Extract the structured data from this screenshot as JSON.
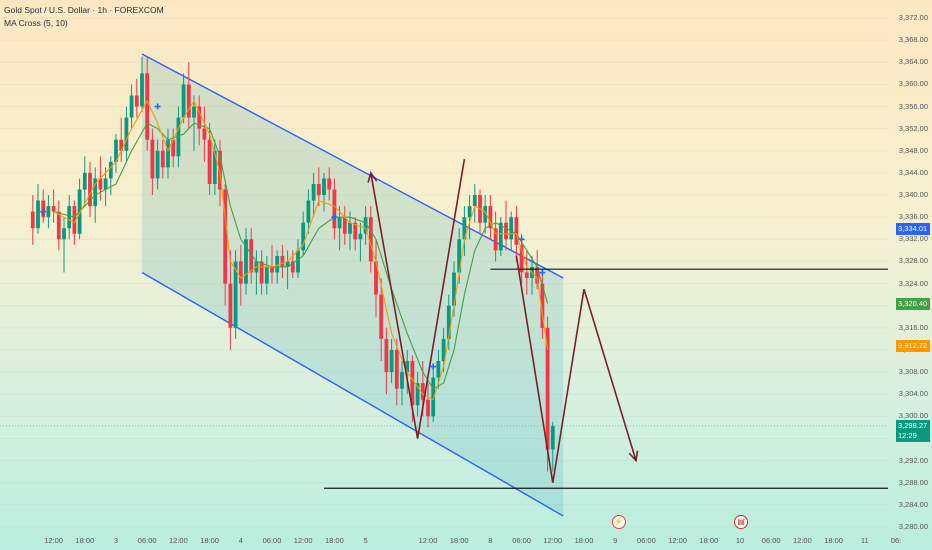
{
  "legend": {
    "symbol": "Gold Spot / U.S. Dollar · 1h · FOREXCOM",
    "indicator": "MA Cross (5, 10)"
  },
  "colors": {
    "bull": "#089981",
    "bear": "#f23645",
    "channel": "#2962ff",
    "arrow": "#7b1f2a",
    "ma_fast": "#ff9800",
    "ma_slow": "#43a047",
    "level": "#131722"
  },
  "price_axis": {
    "min": 3280.0,
    "max": 3372.0,
    "ticks": [
      "3,372.00",
      "3,368.00",
      "3,364.00",
      "3,360.00",
      "3,356.00",
      "3,352.00",
      "3,348.00",
      "3,344.00",
      "3,340.00",
      "3,336.00",
      "3,332.00",
      "3,328.00",
      "3,324.00",
      "3,320.00",
      "3,316.00",
      "3,312.00",
      "3,308.00",
      "3,304.00",
      "3,300.00",
      "3,296.00",
      "3,292.00",
      "3,288.00",
      "3,284.00",
      "3,280.00"
    ]
  },
  "badges": [
    {
      "label": "3,334.01",
      "value": 3334.01,
      "color": "#2962ff",
      "countdown": ""
    },
    {
      "label": "3,320.40",
      "value": 3320.4,
      "color": "#43a047",
      "countdown": ""
    },
    {
      "label": "3,312.72",
      "value": 3312.72,
      "color": "#ff9800",
      "countdown": ""
    },
    {
      "label": "3,298.27",
      "value": 3298.27,
      "color": "#089981",
      "countdown": "12:29"
    }
  ],
  "time_axis": {
    "ticks": [
      {
        "label": "12:00",
        "slot": -12
      },
      {
        "label": "18:00",
        "slot": -6
      },
      {
        "label": "3",
        "slot": 0
      },
      {
        "label": "06:00",
        "slot": 6
      },
      {
        "label": "12:00",
        "slot": 12
      },
      {
        "label": "18:00",
        "slot": 18
      },
      {
        "label": "4",
        "slot": 24
      },
      {
        "label": "06:00",
        "slot": 30
      },
      {
        "label": "12:00",
        "slot": 36
      },
      {
        "label": "18:00",
        "slot": 42
      },
      {
        "label": "5",
        "slot": 48
      },
      {
        "label": "12:00",
        "slot": 60
      },
      {
        "label": "18:00",
        "slot": 66
      },
      {
        "label": "8",
        "slot": 72
      },
      {
        "label": "06:00",
        "slot": 78
      },
      {
        "label": "12:00",
        "slot": 84
      },
      {
        "label": "18:00",
        "slot": 90
      },
      {
        "label": "9",
        "slot": 96
      },
      {
        "label": "06:00",
        "slot": 102
      },
      {
        "label": "12:00",
        "slot": 108
      },
      {
        "label": "18:00",
        "slot": 114
      },
      {
        "label": "10",
        "slot": 120
      },
      {
        "label": "06:00",
        "slot": 126
      },
      {
        "label": "12:00",
        "slot": 132
      },
      {
        "label": "18:00",
        "slot": 138
      },
      {
        "label": "11",
        "slot": 144
      },
      {
        "label": "06:",
        "slot": 150
      }
    ]
  },
  "events": [
    {
      "name": "flash-event-icon",
      "glyph": "⚡",
      "slot": 96.5,
      "color": "#f23645",
      "fill": "#fff"
    },
    {
      "name": "us-flag-event-icon",
      "glyph": "▤",
      "slot": 120,
      "color": "#c62828",
      "fill": "#fff"
    }
  ],
  "chart_data": {
    "type": "candlestick",
    "symbol": "Gold Spot / U.S. Dollar",
    "interval": "1h",
    "ylim": [
      3280,
      3372
    ],
    "candles": [
      {
        "slot": -16,
        "o": 3337,
        "h": 3340,
        "l": 3331,
        "c": 3334
      },
      {
        "slot": -15,
        "o": 3334,
        "h": 3342,
        "l": 3333,
        "c": 3339
      },
      {
        "slot": -14,
        "o": 3339,
        "h": 3341,
        "l": 3335,
        "c": 3336
      },
      {
        "slot": -13,
        "o": 3336,
        "h": 3340,
        "l": 3334,
        "c": 3338
      },
      {
        "slot": -12,
        "o": 3338,
        "h": 3341,
        "l": 3335,
        "c": 3337
      },
      {
        "slot": -11,
        "o": 3337,
        "h": 3339,
        "l": 3330,
        "c": 3332
      },
      {
        "slot": -10,
        "o": 3332,
        "h": 3336,
        "l": 3326,
        "c": 3334
      },
      {
        "slot": -9,
        "o": 3334,
        "h": 3340,
        "l": 3332,
        "c": 3338
      },
      {
        "slot": -8,
        "o": 3338,
        "h": 3339,
        "l": 3331,
        "c": 3333
      },
      {
        "slot": -7,
        "o": 3333,
        "h": 3343,
        "l": 3332,
        "c": 3341
      },
      {
        "slot": -6,
        "o": 3341,
        "h": 3347,
        "l": 3338,
        "c": 3344
      },
      {
        "slot": -5,
        "o": 3344,
        "h": 3346,
        "l": 3336,
        "c": 3338
      },
      {
        "slot": -4,
        "o": 3338,
        "h": 3345,
        "l": 3335,
        "c": 3343
      },
      {
        "slot": -3,
        "o": 3343,
        "h": 3347,
        "l": 3339,
        "c": 3341
      },
      {
        "slot": -2,
        "o": 3341,
        "h": 3345,
        "l": 3338,
        "c": 3343
      },
      {
        "slot": -1,
        "o": 3343,
        "h": 3347,
        "l": 3340,
        "c": 3346
      },
      {
        "slot": 0,
        "o": 3346,
        "h": 3351,
        "l": 3344,
        "c": 3350
      },
      {
        "slot": 1,
        "o": 3350,
        "h": 3354,
        "l": 3346,
        "c": 3348
      },
      {
        "slot": 2,
        "o": 3348,
        "h": 3356,
        "l": 3346,
        "c": 3354
      },
      {
        "slot": 3,
        "o": 3354,
        "h": 3360,
        "l": 3352,
        "c": 3358
      },
      {
        "slot": 4,
        "o": 3358,
        "h": 3361,
        "l": 3354,
        "c": 3356
      },
      {
        "slot": 5,
        "o": 3356,
        "h": 3365,
        "l": 3355,
        "c": 3362
      },
      {
        "slot": 6,
        "o": 3362,
        "h": 3365,
        "l": 3348,
        "c": 3350
      },
      {
        "slot": 7,
        "o": 3350,
        "h": 3352,
        "l": 3340,
        "c": 3343
      },
      {
        "slot": 8,
        "o": 3343,
        "h": 3350,
        "l": 3341,
        "c": 3348
      },
      {
        "slot": 9,
        "o": 3348,
        "h": 3350,
        "l": 3343,
        "c": 3345
      },
      {
        "slot": 10,
        "o": 3345,
        "h": 3352,
        "l": 3343,
        "c": 3350
      },
      {
        "slot": 11,
        "o": 3350,
        "h": 3352,
        "l": 3345,
        "c": 3347
      },
      {
        "slot": 12,
        "o": 3347,
        "h": 3356,
        "l": 3345,
        "c": 3354
      },
      {
        "slot": 13,
        "o": 3354,
        "h": 3362,
        "l": 3353,
        "c": 3360
      },
      {
        "slot": 14,
        "o": 3360,
        "h": 3364,
        "l": 3352,
        "c": 3354
      },
      {
        "slot": 15,
        "o": 3354,
        "h": 3358,
        "l": 3348,
        "c": 3356
      },
      {
        "slot": 16,
        "o": 3356,
        "h": 3358,
        "l": 3349,
        "c": 3352
      },
      {
        "slot": 17,
        "o": 3352,
        "h": 3356,
        "l": 3346,
        "c": 3350
      },
      {
        "slot": 18,
        "o": 3350,
        "h": 3353,
        "l": 3340,
        "c": 3342
      },
      {
        "slot": 19,
        "o": 3342,
        "h": 3350,
        "l": 3340,
        "c": 3348
      },
      {
        "slot": 20,
        "o": 3348,
        "h": 3350,
        "l": 3338,
        "c": 3341
      },
      {
        "slot": 21,
        "o": 3341,
        "h": 3342,
        "l": 3320,
        "c": 3324
      },
      {
        "slot": 22,
        "o": 3324,
        "h": 3330,
        "l": 3312,
        "c": 3316
      },
      {
        "slot": 23,
        "o": 3316,
        "h": 3330,
        "l": 3314,
        "c": 3328
      },
      {
        "slot": 24,
        "o": 3328,
        "h": 3331,
        "l": 3320,
        "c": 3324
      },
      {
        "slot": 25,
        "o": 3324,
        "h": 3334,
        "l": 3322,
        "c": 3332
      },
      {
        "slot": 26,
        "o": 3332,
        "h": 3334,
        "l": 3324,
        "c": 3326
      },
      {
        "slot": 27,
        "o": 3326,
        "h": 3330,
        "l": 3322,
        "c": 3328
      },
      {
        "slot": 28,
        "o": 3328,
        "h": 3330,
        "l": 3322,
        "c": 3324
      },
      {
        "slot": 29,
        "o": 3324,
        "h": 3329,
        "l": 3322,
        "c": 3327
      },
      {
        "slot": 30,
        "o": 3327,
        "h": 3331,
        "l": 3324,
        "c": 3326
      },
      {
        "slot": 31,
        "o": 3326,
        "h": 3330,
        "l": 3324,
        "c": 3329
      },
      {
        "slot": 32,
        "o": 3329,
        "h": 3331,
        "l": 3325,
        "c": 3327
      },
      {
        "slot": 33,
        "o": 3327,
        "h": 3330,
        "l": 3323,
        "c": 3328
      },
      {
        "slot": 34,
        "o": 3328,
        "h": 3330,
        "l": 3325,
        "c": 3326
      },
      {
        "slot": 35,
        "o": 3326,
        "h": 3332,
        "l": 3325,
        "c": 3330
      },
      {
        "slot": 36,
        "o": 3330,
        "h": 3337,
        "l": 3329,
        "c": 3335
      },
      {
        "slot": 37,
        "o": 3335,
        "h": 3341,
        "l": 3333,
        "c": 3339
      },
      {
        "slot": 38,
        "o": 3339,
        "h": 3344,
        "l": 3336,
        "c": 3342
      },
      {
        "slot": 39,
        "o": 3342,
        "h": 3345,
        "l": 3338,
        "c": 3340
      },
      {
        "slot": 40,
        "o": 3340,
        "h": 3344,
        "l": 3337,
        "c": 3343
      },
      {
        "slot": 41,
        "o": 3343,
        "h": 3345,
        "l": 3339,
        "c": 3341
      },
      {
        "slot": 42,
        "o": 3341,
        "h": 3343,
        "l": 3332,
        "c": 3334
      },
      {
        "slot": 43,
        "o": 3334,
        "h": 3338,
        "l": 3330,
        "c": 3336
      },
      {
        "slot": 44,
        "o": 3336,
        "h": 3338,
        "l": 3331,
        "c": 3333
      },
      {
        "slot": 45,
        "o": 3333,
        "h": 3337,
        "l": 3330,
        "c": 3335
      },
      {
        "slot": 46,
        "o": 3335,
        "h": 3336,
        "l": 3330,
        "c": 3332
      },
      {
        "slot": 47,
        "o": 3332,
        "h": 3335,
        "l": 3328,
        "c": 3333
      },
      {
        "slot": 48,
        "o": 3333,
        "h": 3338,
        "l": 3331,
        "c": 3336
      },
      {
        "slot": 49,
        "o": 3336,
        "h": 3338,
        "l": 3326,
        "c": 3328
      },
      {
        "slot": 50,
        "o": 3328,
        "h": 3332,
        "l": 3318,
        "c": 3322
      },
      {
        "slot": 51,
        "o": 3322,
        "h": 3325,
        "l": 3310,
        "c": 3314
      },
      {
        "slot": 52,
        "o": 3314,
        "h": 3316,
        "l": 3304,
        "c": 3308
      },
      {
        "slot": 53,
        "o": 3308,
        "h": 3314,
        "l": 3306,
        "c": 3312
      },
      {
        "slot": 54,
        "o": 3312,
        "h": 3314,
        "l": 3302,
        "c": 3305
      },
      {
        "slot": 55,
        "o": 3305,
        "h": 3310,
        "l": 3302,
        "c": 3308
      },
      {
        "slot": 56,
        "o": 3308,
        "h": 3312,
        "l": 3304,
        "c": 3310
      },
      {
        "slot": 57,
        "o": 3310,
        "h": 3311,
        "l": 3299,
        "c": 3302
      },
      {
        "slot": 58,
        "o": 3302,
        "h": 3308,
        "l": 3300,
        "c": 3306
      },
      {
        "slot": 59,
        "o": 3306,
        "h": 3310,
        "l": 3300,
        "c": 3303
      },
      {
        "slot": 60,
        "o": 3303,
        "h": 3306,
        "l": 3298,
        "c": 3300
      },
      {
        "slot": 61,
        "o": 3300,
        "h": 3309,
        "l": 3299,
        "c": 3307
      },
      {
        "slot": 62,
        "o": 3307,
        "h": 3312,
        "l": 3305,
        "c": 3310
      },
      {
        "slot": 63,
        "o": 3310,
        "h": 3316,
        "l": 3308,
        "c": 3314
      },
      {
        "slot": 64,
        "o": 3314,
        "h": 3322,
        "l": 3312,
        "c": 3320
      },
      {
        "slot": 65,
        "o": 3320,
        "h": 3328,
        "l": 3318,
        "c": 3326
      },
      {
        "slot": 66,
        "o": 3326,
        "h": 3334,
        "l": 3324,
        "c": 3332
      },
      {
        "slot": 67,
        "o": 3332,
        "h": 3338,
        "l": 3329,
        "c": 3336
      },
      {
        "slot": 68,
        "o": 3336,
        "h": 3340,
        "l": 3332,
        "c": 3338
      },
      {
        "slot": 69,
        "o": 3338,
        "h": 3342,
        "l": 3335,
        "c": 3340
      },
      {
        "slot": 70,
        "o": 3340,
        "h": 3341,
        "l": 3333,
        "c": 3335
      },
      {
        "slot": 71,
        "o": 3335,
        "h": 3340,
        "l": 3333,
        "c": 3338
      },
      {
        "slot": 72,
        "o": 3338,
        "h": 3340,
        "l": 3332,
        "c": 3334
      },
      {
        "slot": 73,
        "o": 3334,
        "h": 3337,
        "l": 3328,
        "c": 3330
      },
      {
        "slot": 74,
        "o": 3330,
        "h": 3336,
        "l": 3329,
        "c": 3335
      },
      {
        "slot": 75,
        "o": 3335,
        "h": 3339,
        "l": 3330,
        "c": 3332
      },
      {
        "slot": 76,
        "o": 3332,
        "h": 3337,
        "l": 3330,
        "c": 3336
      },
      {
        "slot": 77,
        "o": 3336,
        "h": 3338,
        "l": 3328,
        "c": 3331
      },
      {
        "slot": 78,
        "o": 3331,
        "h": 3333,
        "l": 3324,
        "c": 3326
      },
      {
        "slot": 79,
        "o": 3326,
        "h": 3330,
        "l": 3322,
        "c": 3325
      },
      {
        "slot": 80,
        "o": 3325,
        "h": 3329,
        "l": 3322,
        "c": 3327
      },
      {
        "slot": 81,
        "o": 3327,
        "h": 3330,
        "l": 3323,
        "c": 3324
      },
      {
        "slot": 82,
        "o": 3324,
        "h": 3326,
        "l": 3314,
        "c": 3316
      },
      {
        "slot": 83,
        "o": 3316,
        "h": 3318,
        "l": 3290,
        "c": 3294
      },
      {
        "slot": 84,
        "o": 3294,
        "h": 3299,
        "l": 3290,
        "c": 3298.27
      }
    ],
    "ma_fast": {
      "name": "MA 5",
      "values": [
        [
          -12,
          3337
        ],
        [
          -8,
          3335
        ],
        [
          -4,
          3342
        ],
        [
          0,
          3346
        ],
        [
          3,
          3352
        ],
        [
          6,
          3357
        ],
        [
          8,
          3353
        ],
        [
          10,
          3348
        ],
        [
          13,
          3354
        ],
        [
          15,
          3357
        ],
        [
          18,
          3351
        ],
        [
          20,
          3344
        ],
        [
          22,
          3328
        ],
        [
          24,
          3325
        ],
        [
          27,
          3327
        ],
        [
          30,
          3327
        ],
        [
          33,
          3328
        ],
        [
          36,
          3331
        ],
        [
          39,
          3339
        ],
        [
          42,
          3338
        ],
        [
          45,
          3335
        ],
        [
          48,
          3334
        ],
        [
          50,
          3328
        ],
        [
          53,
          3315
        ],
        [
          56,
          3308
        ],
        [
          59,
          3304
        ],
        [
          61,
          3303
        ],
        [
          63,
          3309
        ],
        [
          65,
          3320
        ],
        [
          67,
          3332
        ],
        [
          69,
          3338
        ],
        [
          71,
          3337
        ],
        [
          73,
          3333
        ],
        [
          75,
          3333
        ],
        [
          77,
          3333
        ],
        [
          79,
          3327
        ],
        [
          81,
          3325
        ],
        [
          83,
          3312
        ]
      ]
    },
    "ma_slow": {
      "name": "MA 10",
      "values": [
        [
          -12,
          3337
        ],
        [
          -8,
          3336
        ],
        [
          -4,
          3340
        ],
        [
          0,
          3342
        ],
        [
          3,
          3348
        ],
        [
          6,
          3353
        ],
        [
          8,
          3352
        ],
        [
          10,
          3350
        ],
        [
          13,
          3351
        ],
        [
          15,
          3353
        ],
        [
          18,
          3352
        ],
        [
          20,
          3347
        ],
        [
          22,
          3338
        ],
        [
          24,
          3332
        ],
        [
          27,
          3328
        ],
        [
          30,
          3327
        ],
        [
          33,
          3327
        ],
        [
          36,
          3329
        ],
        [
          39,
          3334
        ],
        [
          42,
          3336
        ],
        [
          45,
          3336
        ],
        [
          48,
          3335
        ],
        [
          50,
          3332
        ],
        [
          53,
          3323
        ],
        [
          56,
          3315
        ],
        [
          59,
          3308
        ],
        [
          61,
          3305
        ],
        [
          63,
          3306
        ],
        [
          65,
          3312
        ],
        [
          67,
          3322
        ],
        [
          69,
          3330
        ],
        [
          71,
          3334
        ],
        [
          73,
          3335
        ],
        [
          75,
          3334
        ],
        [
          77,
          3333
        ],
        [
          79,
          3330
        ],
        [
          81,
          3327
        ],
        [
          83,
          3320.4
        ]
      ]
    },
    "channel": {
      "upper": [
        [
          5,
          3365.5
        ],
        [
          86,
          3325
        ]
      ],
      "lower": [
        [
          5,
          3326
        ],
        [
          86,
          3282
        ]
      ]
    },
    "horizontal_levels": [
      {
        "price": 3326.6,
        "from_slot": 72,
        "to_slot": 150
      },
      {
        "price": 3287,
        "from_slot": 40,
        "to_slot": 150
      }
    ],
    "projection_path": [
      [
        49,
        3344
      ],
      [
        58,
        3296
      ],
      [
        67,
        3346.5
      ],
      [
        77,
        3329
      ],
      [
        84,
        3288
      ],
      [
        90,
        3323
      ],
      [
        100,
        3292
      ]
    ],
    "crosses": [
      [
        -14,
        3337
      ],
      [
        8,
        3356
      ],
      [
        42,
        3336
      ],
      [
        61,
        3309
      ],
      [
        78,
        3332
      ],
      [
        82,
        3326
      ]
    ]
  }
}
